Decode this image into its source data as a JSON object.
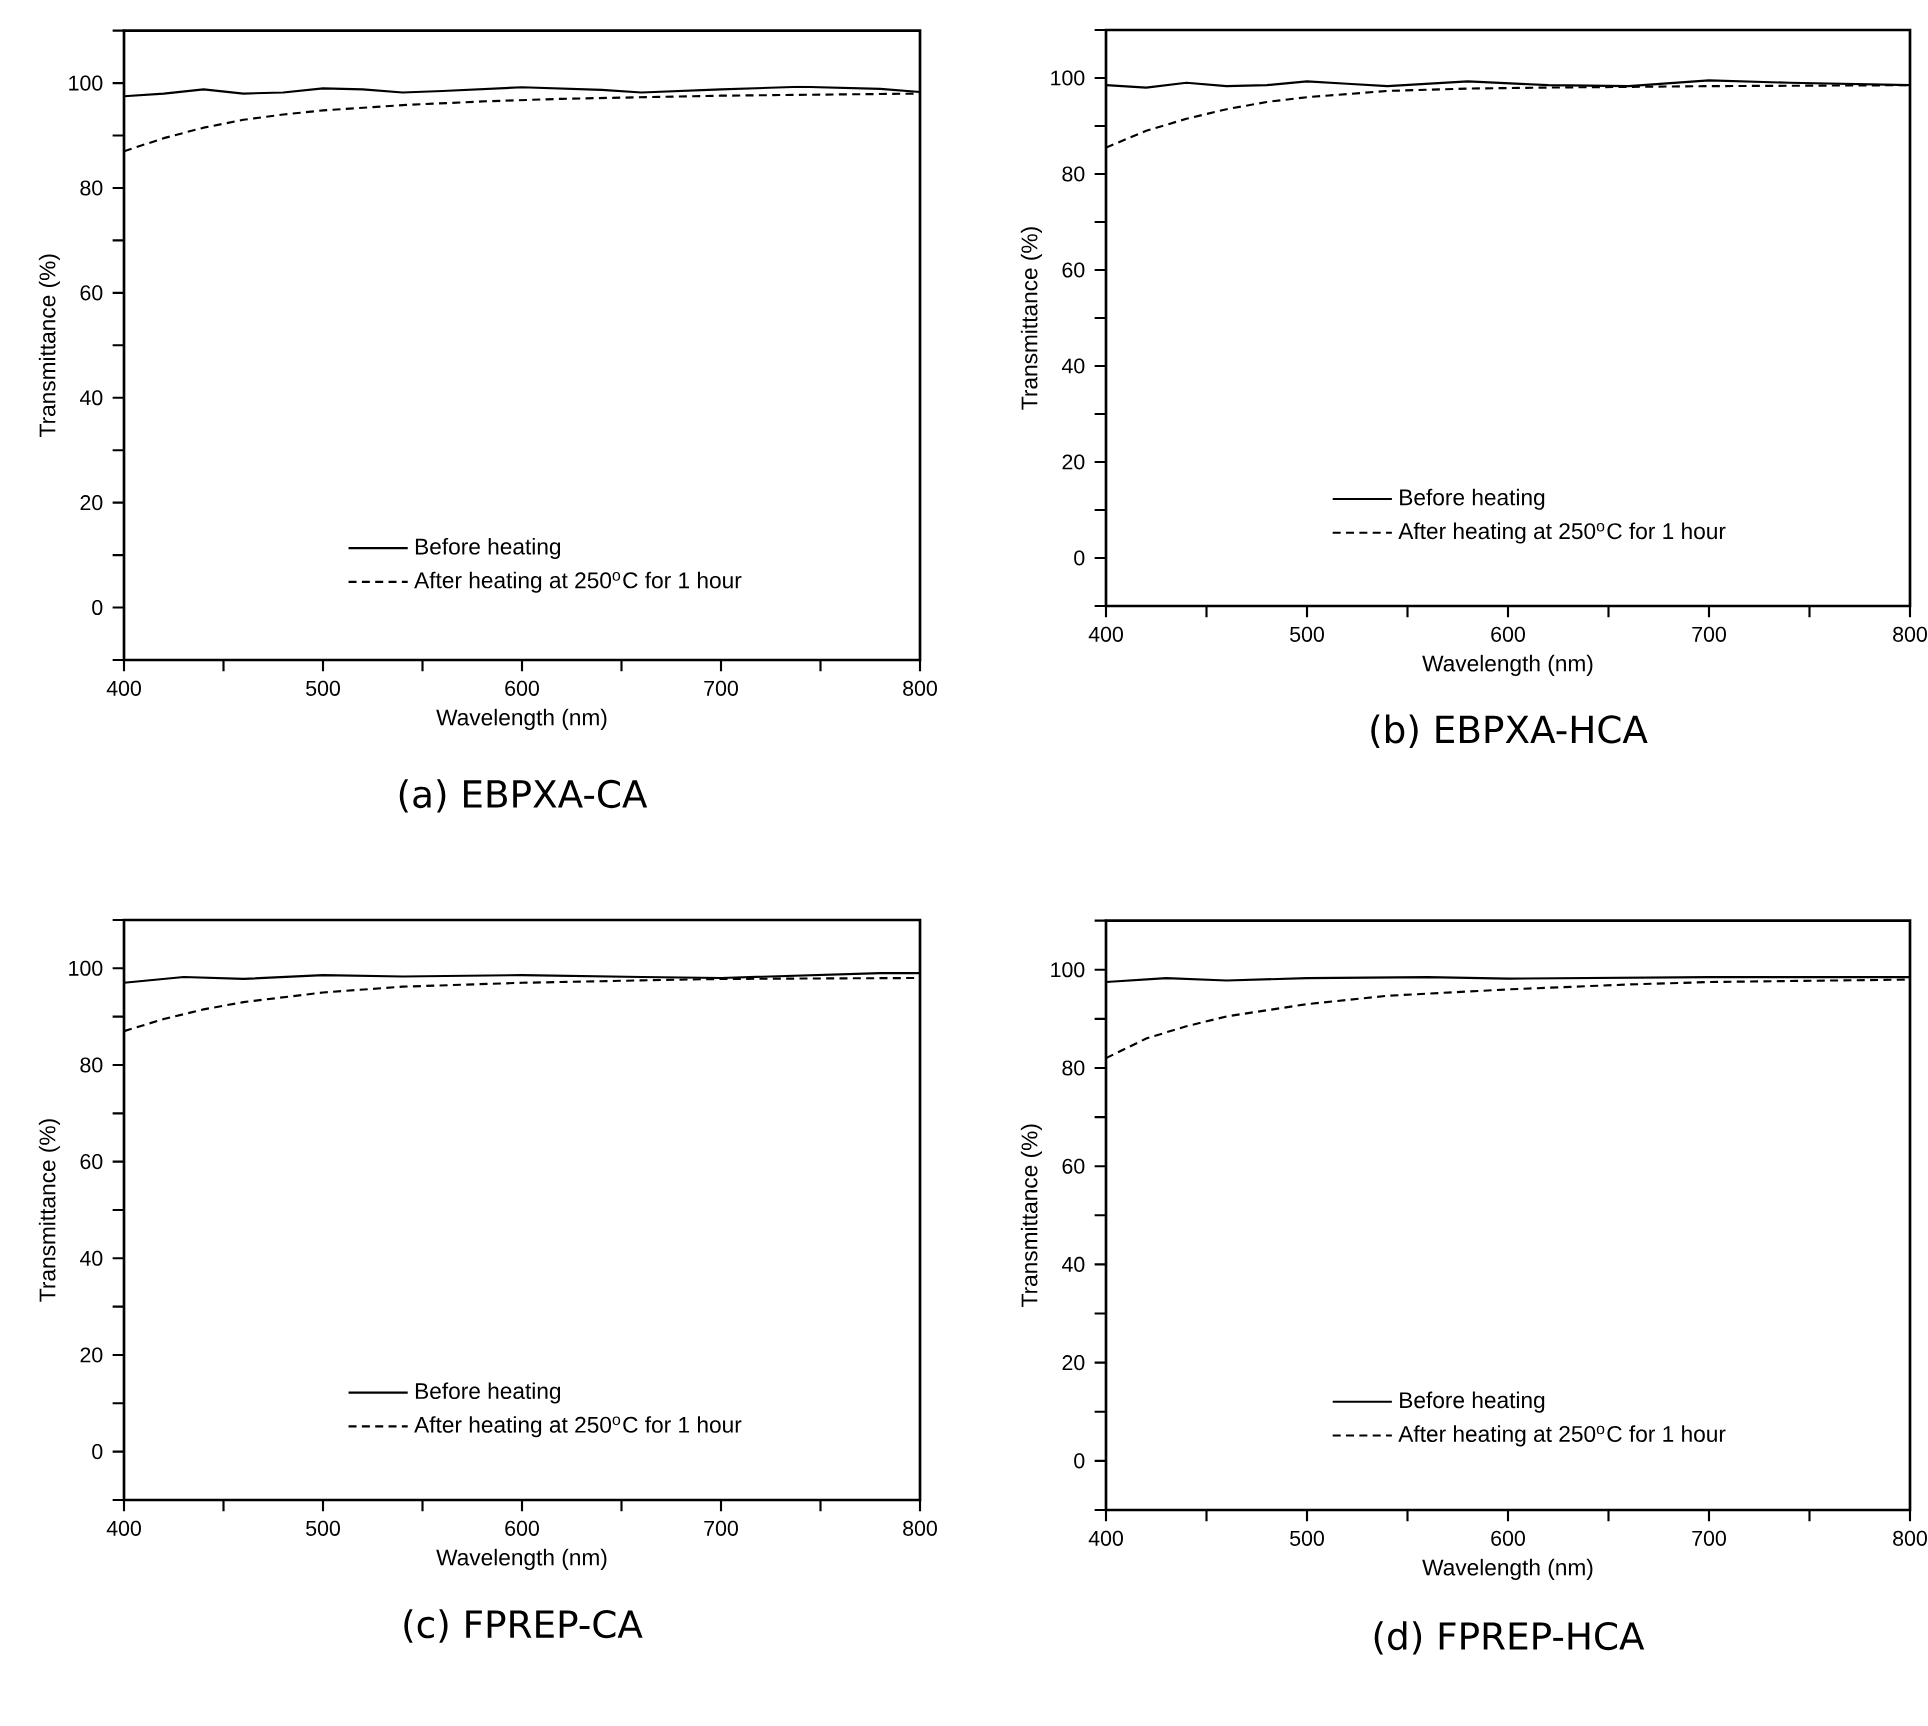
{
  "chart_data": [
    {
      "type": "line",
      "title": "(a) EBPXA-CA",
      "xlabel": "Wavelength (nm)",
      "ylabel": "Transmittance (%)",
      "xlim": [
        400,
        800
      ],
      "ylim": [
        -10,
        110
      ],
      "xticks": [
        400,
        {
          "value": 450,
          "label": null
        },
        500,
        {
          "value": 550,
          "label": null
        },
        600,
        {
          "value": 650,
          "label": null
        },
        700,
        {
          "value": 750,
          "label": null
        },
        800
      ],
      "yticks": [
        {
          "value": -10,
          "label": null
        },
        0,
        {
          "value": 10,
          "label": null
        },
        20,
        {
          "value": 30,
          "label": null
        },
        40,
        {
          "value": 50,
          "label": null
        },
        60,
        {
          "value": 70,
          "label": null
        },
        80,
        {
          "value": 90,
          "label": null
        },
        100,
        {
          "value": 110,
          "label": null
        }
      ],
      "legend": "bottom",
      "series": [
        {
          "name": "Before heating",
          "color": "#000000",
          "line_style": "solid",
          "x": [
            400,
            420,
            440,
            460,
            480,
            500,
            520,
            540,
            560,
            600,
            640,
            660,
            700,
            740,
            780,
            800
          ],
          "values": [
            97.5,
            98,
            98.8,
            98,
            98.2,
            99,
            98.8,
            98.2,
            98.5,
            99.2,
            98.7,
            98.2,
            98.8,
            99.3,
            98.9,
            98.3
          ]
        },
        {
          "name": "After heating at 250$^{o}$C for 1 hour",
          "color": "#000000",
          "line_style": "dashed",
          "x": [
            400,
            420,
            440,
            460,
            480,
            500,
            540,
            580,
            620,
            660,
            700,
            750,
            800
          ],
          "values": [
            87,
            89.5,
            91.5,
            93,
            94,
            94.8,
            95.8,
            96.5,
            97,
            97.3,
            97.6,
            97.8,
            98
          ]
        }
      ]
    },
    {
      "type": "line",
      "title": "(b) EBPXA-HCA",
      "xlabel": "Wavelength (nm)",
      "ylabel": "Transmittance (%)",
      "xlim": [
        400,
        800
      ],
      "ylim": [
        -10,
        110
      ],
      "xticks": [
        400,
        {
          "value": 450,
          "label": null
        },
        500,
        {
          "value": 550,
          "label": null
        },
        600,
        {
          "value": 650,
          "label": null
        },
        700,
        {
          "value": 750,
          "label": null
        },
        800
      ],
      "yticks": [
        {
          "value": -10,
          "label": null
        },
        0,
        {
          "value": 10,
          "label": null
        },
        20,
        {
          "value": 30,
          "label": null
        },
        40,
        {
          "value": 50,
          "label": null
        },
        60,
        {
          "value": 70,
          "label": null
        },
        80,
        {
          "value": 90,
          "label": null
        },
        100,
        {
          "value": 110,
          "label": null
        }
      ],
      "legend": "bottom",
      "series": [
        {
          "name": "Before heating",
          "color": "#000000",
          "line_style": "solid",
          "x": [
            400,
            420,
            440,
            460,
            480,
            500,
            520,
            540,
            580,
            620,
            660,
            700,
            740,
            800
          ],
          "values": [
            98.5,
            98,
            99,
            98.3,
            98.5,
            99.3,
            98.8,
            98.3,
            99.3,
            98.5,
            98.3,
            99.5,
            99,
            98.5
          ]
        },
        {
          "name": "After heating at 250$^{o}$C for 1 hour",
          "color": "#000000",
          "line_style": "dashed",
          "x": [
            400,
            420,
            440,
            460,
            480,
            500,
            540,
            580,
            620,
            700,
            800
          ],
          "values": [
            85.5,
            89,
            91.5,
            93.5,
            95,
            96,
            97.3,
            97.8,
            98,
            98.3,
            98.5
          ]
        }
      ]
    },
    {
      "type": "line",
      "title": "(c) FPREP-CA",
      "xlabel": "Wavelength (nm)",
      "ylabel": "Transmittance (%)",
      "xlim": [
        400,
        800
      ],
      "ylim": [
        -10,
        110
      ],
      "xticks": [
        400,
        {
          "value": 450,
          "label": null
        },
        500,
        {
          "value": 550,
          "label": null
        },
        600,
        {
          "value": 650,
          "label": null
        },
        700,
        {
          "value": 750,
          "label": null
        },
        800
      ],
      "yticks": [
        {
          "value": -10,
          "label": null
        },
        0,
        {
          "value": 10,
          "label": null
        },
        20,
        {
          "value": 30,
          "label": null
        },
        40,
        {
          "value": 50,
          "label": null
        },
        60,
        {
          "value": 70,
          "label": null
        },
        80,
        {
          "value": 90,
          "label": null
        },
        100,
        {
          "value": 110,
          "label": null
        }
      ],
      "legend": "bottom",
      "series": [
        {
          "name": "Before heating",
          "color": "#000000",
          "line_style": "solid",
          "x": [
            400,
            430,
            460,
            500,
            540,
            600,
            660,
            700,
            740,
            780,
            800
          ],
          "values": [
            97,
            98.2,
            97.8,
            98.6,
            98.3,
            98.6,
            98.2,
            98,
            98.5,
            99,
            99
          ]
        },
        {
          "name": "After heating at 250$^{o}$C for 1 hour",
          "color": "#000000",
          "line_style": "dashed",
          "x": [
            400,
            420,
            440,
            460,
            500,
            540,
            600,
            660,
            700,
            800
          ],
          "values": [
            87,
            89.5,
            91.5,
            93,
            95,
            96.2,
            97,
            97.5,
            97.8,
            98
          ]
        }
      ]
    },
    {
      "type": "line",
      "title": "(d) FPREP-HCA",
      "xlabel": "Wavelength (nm)",
      "ylabel": "Transmittance (%)",
      "xlim": [
        400,
        800
      ],
      "ylim": [
        -10,
        110
      ],
      "xticks": [
        400,
        {
          "value": 450,
          "label": null
        },
        500,
        {
          "value": 550,
          "label": null
        },
        600,
        {
          "value": 650,
          "label": null
        },
        700,
        {
          "value": 750,
          "label": null
        },
        800
      ],
      "yticks": [
        {
          "value": -10,
          "label": null
        },
        0,
        {
          "value": 10,
          "label": null
        },
        20,
        {
          "value": 30,
          "label": null
        },
        40,
        {
          "value": 50,
          "label": null
        },
        60,
        {
          "value": 70,
          "label": null
        },
        80,
        {
          "value": 90,
          "label": null
        },
        100,
        {
          "value": 110,
          "label": null
        }
      ],
      "legend": "bottom",
      "series": [
        {
          "name": "Before heating",
          "color": "#000000",
          "line_style": "solid",
          "x": [
            400,
            430,
            460,
            500,
            560,
            600,
            700,
            800
          ],
          "values": [
            97.5,
            98.3,
            97.8,
            98.3,
            98.5,
            98.2,
            98.5,
            98.5
          ]
        },
        {
          "name": "After heating at 250$^{o}$C for 1 hour",
          "color": "#000000",
          "line_style": "dashed",
          "x": [
            400,
            420,
            440,
            460,
            500,
            540,
            600,
            660,
            700,
            800
          ],
          "values": [
            82,
            86,
            88.5,
            90.5,
            93,
            94.7,
            96,
            97,
            97.5,
            98
          ]
        }
      ]
    }
  ]
}
